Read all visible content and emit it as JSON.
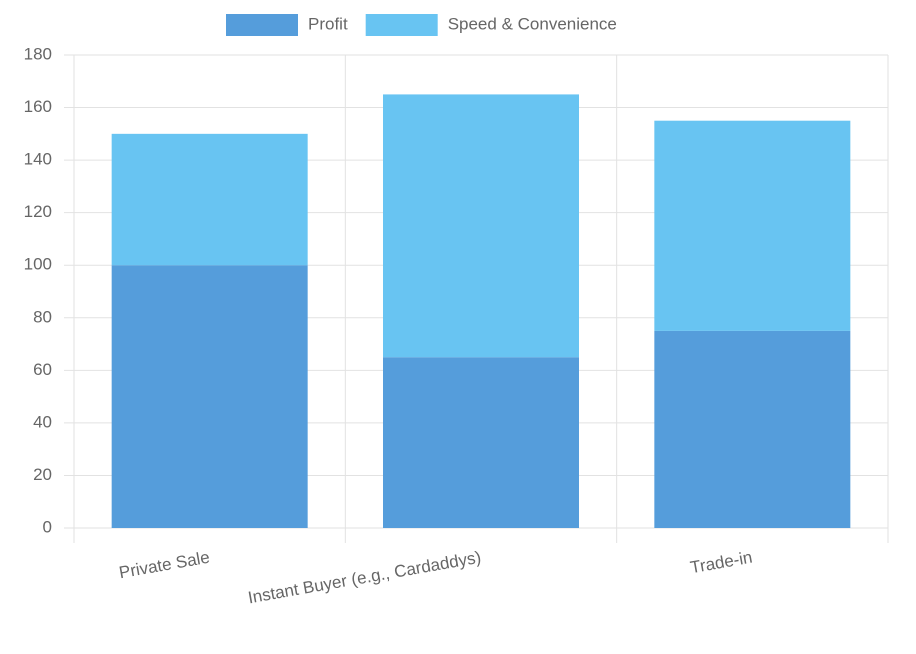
{
  "chart_data": {
    "type": "stacked-bar",
    "categories": [
      "Private Sale",
      "Instant Buyer (e.g., Cardaddys)",
      "Trade-in"
    ],
    "series": [
      {
        "name": "Profit",
        "color": "#559ddb",
        "values": [
          100,
          65,
          75
        ]
      },
      {
        "name": "Speed & Convenience",
        "color": "#68c4f2",
        "values": [
          50,
          100,
          80
        ]
      }
    ],
    "ylim": [
      0,
      180
    ],
    "yticks": [
      0,
      20,
      40,
      60,
      80,
      100,
      120,
      140,
      160,
      180
    ],
    "grid": true,
    "legend": "top"
  }
}
